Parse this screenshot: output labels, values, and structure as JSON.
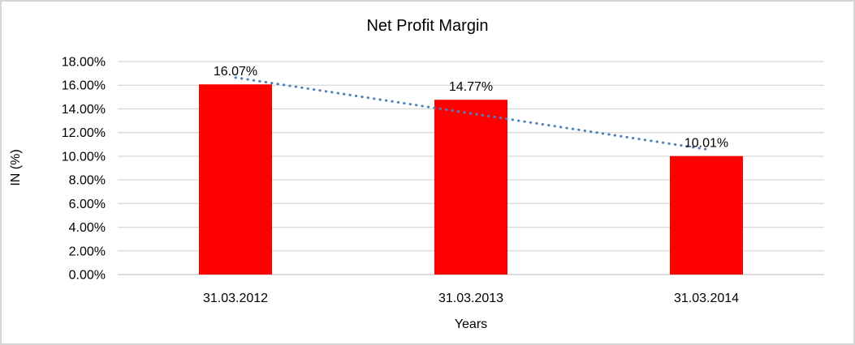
{
  "chart_data": {
    "type": "bar",
    "title": "Net Profit Margin",
    "xlabel": "Years",
    "ylabel": "IN (%)",
    "categories": [
      "31.03.2012",
      "31.03.2013",
      "31.03.2014"
    ],
    "values": [
      16.07,
      14.77,
      10.01
    ],
    "data_labels": [
      "16.07%",
      "14.77%",
      "10.01%"
    ],
    "ylim": [
      0,
      18
    ],
    "ytick_step": 2,
    "ytick_labels": [
      "0.00%",
      "2.00%",
      "4.00%",
      "6.00%",
      "8.00%",
      "10.00%",
      "12.00%",
      "14.00%",
      "16.00%",
      "18.00%"
    ],
    "grid": true,
    "legend": "none",
    "bar_color": "#ff0000",
    "trendline": {
      "type": "linear",
      "style": "dotted",
      "color": "#4f81bd"
    },
    "gridline_color": "#d9d9d9",
    "axis_line_color": "#c6c6c6",
    "border_color": "#d5d5d5",
    "text_color": "#000000"
  }
}
